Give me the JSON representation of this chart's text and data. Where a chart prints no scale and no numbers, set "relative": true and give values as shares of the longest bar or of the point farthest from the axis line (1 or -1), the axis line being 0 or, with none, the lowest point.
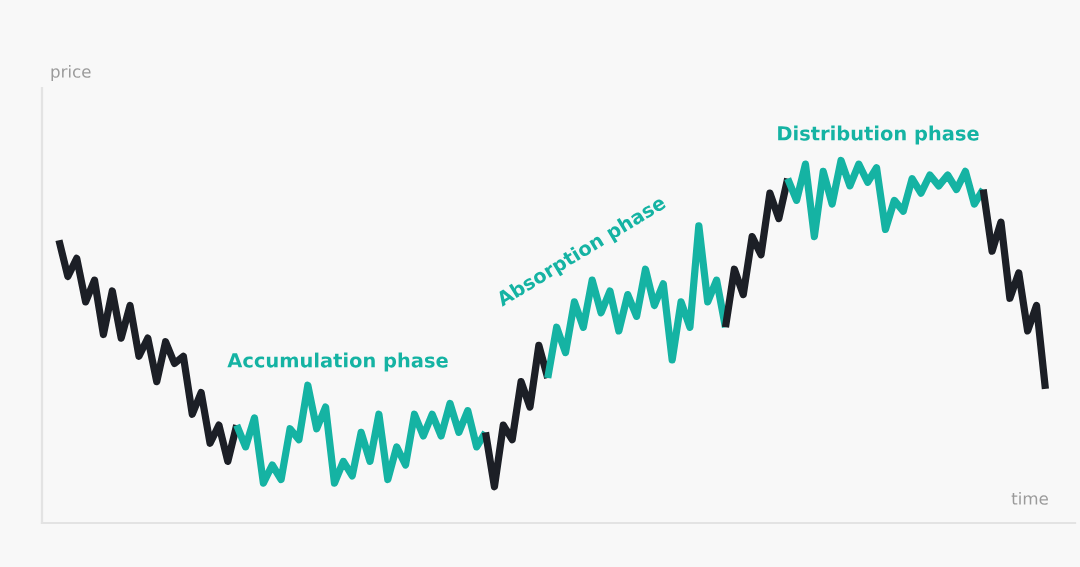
{
  "chart_data": {
    "type": "line",
    "relative": true,
    "xlabel": "time",
    "ylabel": "price",
    "annotations": [
      "Accumulation phase",
      "Absorption phase",
      "Distribution phase"
    ],
    "categories": [
      null,
      null,
      null,
      null,
      null,
      null,
      null,
      null,
      null,
      null,
      null,
      null,
      null,
      null,
      null,
      null,
      null,
      null,
      null,
      null,
      null,
      null,
      null,
      null,
      null,
      null,
      null,
      null,
      null,
      null,
      null,
      null,
      null,
      null,
      null,
      null,
      null,
      null,
      null,
      null,
      null,
      null,
      null,
      null,
      null,
      null,
      null,
      null,
      null,
      null,
      null,
      null,
      null,
      null,
      null,
      null,
      null,
      null,
      null,
      null,
      null,
      null,
      null,
      null,
      null,
      null,
      null,
      null,
      null,
      null,
      null,
      null,
      null,
      null,
      null,
      null,
      null,
      null,
      null,
      null,
      null,
      null,
      null,
      null,
      null,
      null,
      null,
      null,
      null,
      null,
      null,
      null,
      null,
      null,
      null,
      null,
      null,
      null,
      null,
      null,
      null,
      null,
      null,
      null,
      null,
      null,
      null,
      null,
      null,
      null,
      null,
      null
    ],
    "series": [
      {
        "color": "#1c1f26",
        "values": [
          0.78,
          0.68,
          0.73,
          0.61,
          0.67,
          0.52,
          0.64,
          0.51,
          0.6,
          0.46,
          0.51,
          0.39,
          0.5,
          0.44,
          0.46,
          0.3,
          0.36,
          0.22,
          0.27,
          0.17,
          0.27,
          null,
          null,
          null,
          null,
          null,
          null,
          null,
          null,
          null,
          null,
          null,
          null,
          null,
          null,
          null,
          null,
          null,
          null,
          null,
          null,
          null,
          null,
          null,
          null,
          null,
          null,
          null,
          null,
          null,
          null,
          null,
          null,
          null,
          null,
          null,
          null,
          null,
          null,
          null,
          null,
          null,
          null,
          null,
          null,
          null,
          null,
          null,
          null,
          null,
          null,
          null,
          null,
          null,
          null,
          null,
          null,
          null,
          null,
          null,
          null,
          null,
          null,
          null,
          null,
          null,
          null,
          null,
          null,
          null,
          null,
          null,
          null,
          null,
          null,
          null,
          null,
          null,
          null,
          null,
          null,
          null,
          null,
          null,
          null,
          null,
          null,
          null,
          null,
          null,
          null,
          null
        ]
      },
      {
        "color": "#15b3a3",
        "values": [
          null,
          null,
          null,
          null,
          null,
          null,
          null,
          null,
          null,
          null,
          null,
          null,
          null,
          null,
          null,
          null,
          null,
          null,
          null,
          null,
          0.27,
          0.21,
          0.29,
          0.11,
          0.16,
          0.12,
          0.26,
          0.23,
          0.38,
          0.26,
          0.32,
          0.11,
          0.17,
          0.13,
          0.25,
          0.17,
          0.3,
          0.12,
          0.21,
          0.16,
          0.3,
          0.24,
          0.3,
          0.24,
          0.33,
          0.25,
          0.31,
          0.21,
          0.25,
          null,
          null,
          null,
          null,
          null,
          null,
          null,
          null,
          null,
          null,
          null,
          null,
          null,
          null,
          null,
          null,
          null,
          null,
          null,
          null,
          null,
          null,
          null,
          null,
          null,
          null,
          null,
          null,
          null,
          null,
          null,
          null,
          null,
          null,
          null,
          null,
          null,
          null,
          null,
          null,
          null,
          null,
          null,
          null,
          null,
          null,
          null,
          null,
          null,
          null,
          null,
          null,
          null,
          null,
          null,
          null,
          null,
          null,
          null,
          null,
          null,
          null,
          null
        ]
      },
      {
        "color": "#1c1f26",
        "values": [
          null,
          null,
          null,
          null,
          null,
          null,
          null,
          null,
          null,
          null,
          null,
          null,
          null,
          null,
          null,
          null,
          null,
          null,
          null,
          null,
          null,
          null,
          null,
          null,
          null,
          null,
          null,
          null,
          null,
          null,
          null,
          null,
          null,
          null,
          null,
          null,
          null,
          null,
          null,
          null,
          null,
          null,
          null,
          null,
          null,
          null,
          null,
          null,
          0.25,
          0.1,
          0.27,
          0.23,
          0.39,
          0.32,
          0.49,
          0.4,
          null,
          null,
          null,
          null,
          null,
          null,
          null,
          null,
          null,
          null,
          null,
          null,
          null,
          null,
          null,
          null,
          null,
          null,
          null,
          null,
          null,
          null,
          null,
          null,
          null,
          null,
          null,
          null,
          null,
          null,
          null,
          null,
          null,
          null,
          null,
          null,
          null,
          null,
          null,
          null,
          null,
          null,
          null,
          null,
          null,
          null,
          null,
          null,
          null,
          null,
          null,
          null,
          null,
          null,
          null,
          null
        ]
      },
      {
        "color": "#15b3a3",
        "values": [
          null,
          null,
          null,
          null,
          null,
          null,
          null,
          null,
          null,
          null,
          null,
          null,
          null,
          null,
          null,
          null,
          null,
          null,
          null,
          null,
          null,
          null,
          null,
          null,
          null,
          null,
          null,
          null,
          null,
          null,
          null,
          null,
          null,
          null,
          null,
          null,
          null,
          null,
          null,
          null,
          null,
          null,
          null,
          null,
          null,
          null,
          null,
          null,
          null,
          null,
          null,
          null,
          null,
          null,
          null,
          0.4,
          0.54,
          0.47,
          0.61,
          0.54,
          0.67,
          0.58,
          0.64,
          0.53,
          0.63,
          0.57,
          0.7,
          0.6,
          0.66,
          0.45,
          0.61,
          0.54,
          0.82,
          0.61,
          0.67,
          0.54,
          null,
          null,
          null,
          null,
          null,
          null,
          null,
          null,
          null,
          null,
          null,
          null,
          null,
          null,
          null,
          null,
          null,
          null,
          null,
          null,
          null,
          null,
          null,
          null,
          null,
          null,
          null,
          null,
          null,
          null,
          null,
          null,
          null,
          null,
          null,
          null
        ]
      },
      {
        "color": "#1c1f26",
        "values": [
          null,
          null,
          null,
          null,
          null,
          null,
          null,
          null,
          null,
          null,
          null,
          null,
          null,
          null,
          null,
          null,
          null,
          null,
          null,
          null,
          null,
          null,
          null,
          null,
          null,
          null,
          null,
          null,
          null,
          null,
          null,
          null,
          null,
          null,
          null,
          null,
          null,
          null,
          null,
          null,
          null,
          null,
          null,
          null,
          null,
          null,
          null,
          null,
          null,
          null,
          null,
          null,
          null,
          null,
          null,
          null,
          null,
          null,
          null,
          null,
          null,
          null,
          null,
          null,
          null,
          null,
          null,
          null,
          null,
          null,
          null,
          null,
          null,
          null,
          null,
          0.54,
          0.7,
          0.63,
          0.79,
          0.74,
          0.91,
          0.84,
          0.95,
          null,
          null,
          null,
          null,
          null,
          null,
          null,
          null,
          null,
          null,
          null,
          null,
          null,
          null,
          null,
          null,
          null,
          null,
          null,
          null,
          null,
          null,
          null,
          null,
          null,
          null,
          null,
          null,
          null
        ]
      },
      {
        "color": "#15b3a3",
        "values": [
          null,
          null,
          null,
          null,
          null,
          null,
          null,
          null,
          null,
          null,
          null,
          null,
          null,
          null,
          null,
          null,
          null,
          null,
          null,
          null,
          null,
          null,
          null,
          null,
          null,
          null,
          null,
          null,
          null,
          null,
          null,
          null,
          null,
          null,
          null,
          null,
          null,
          null,
          null,
          null,
          null,
          null,
          null,
          null,
          null,
          null,
          null,
          null,
          null,
          null,
          null,
          null,
          null,
          null,
          null,
          null,
          null,
          null,
          null,
          null,
          null,
          null,
          null,
          null,
          null,
          null,
          null,
          null,
          null,
          null,
          null,
          null,
          null,
          null,
          null,
          null,
          null,
          null,
          null,
          null,
          null,
          null,
          0.95,
          0.89,
          0.99,
          0.79,
          0.97,
          0.88,
          1.0,
          0.93,
          0.99,
          0.94,
          0.98,
          0.81,
          0.89,
          0.86,
          0.95,
          0.91,
          0.96,
          0.93,
          0.96,
          0.92,
          0.97,
          0.88,
          0.92,
          null,
          null,
          null,
          null,
          null,
          null,
          null
        ]
      },
      {
        "color": "#1c1f26",
        "values": [
          null,
          null,
          null,
          null,
          null,
          null,
          null,
          null,
          null,
          null,
          null,
          null,
          null,
          null,
          null,
          null,
          null,
          null,
          null,
          null,
          null,
          null,
          null,
          null,
          null,
          null,
          null,
          null,
          null,
          null,
          null,
          null,
          null,
          null,
          null,
          null,
          null,
          null,
          null,
          null,
          null,
          null,
          null,
          null,
          null,
          null,
          null,
          null,
          null,
          null,
          null,
          null,
          null,
          null,
          null,
          null,
          null,
          null,
          null,
          null,
          null,
          null,
          null,
          null,
          null,
          null,
          null,
          null,
          null,
          null,
          null,
          null,
          null,
          null,
          null,
          null,
          null,
          null,
          null,
          null,
          null,
          null,
          null,
          null,
          null,
          null,
          null,
          null,
          null,
          null,
          null,
          null,
          null,
          null,
          null,
          null,
          null,
          null,
          null,
          null,
          null,
          null,
          null,
          null,
          0.92,
          0.75,
          0.83,
          0.62,
          0.69,
          0.53,
          0.6,
          0.37
        ]
      }
    ]
  }
}
